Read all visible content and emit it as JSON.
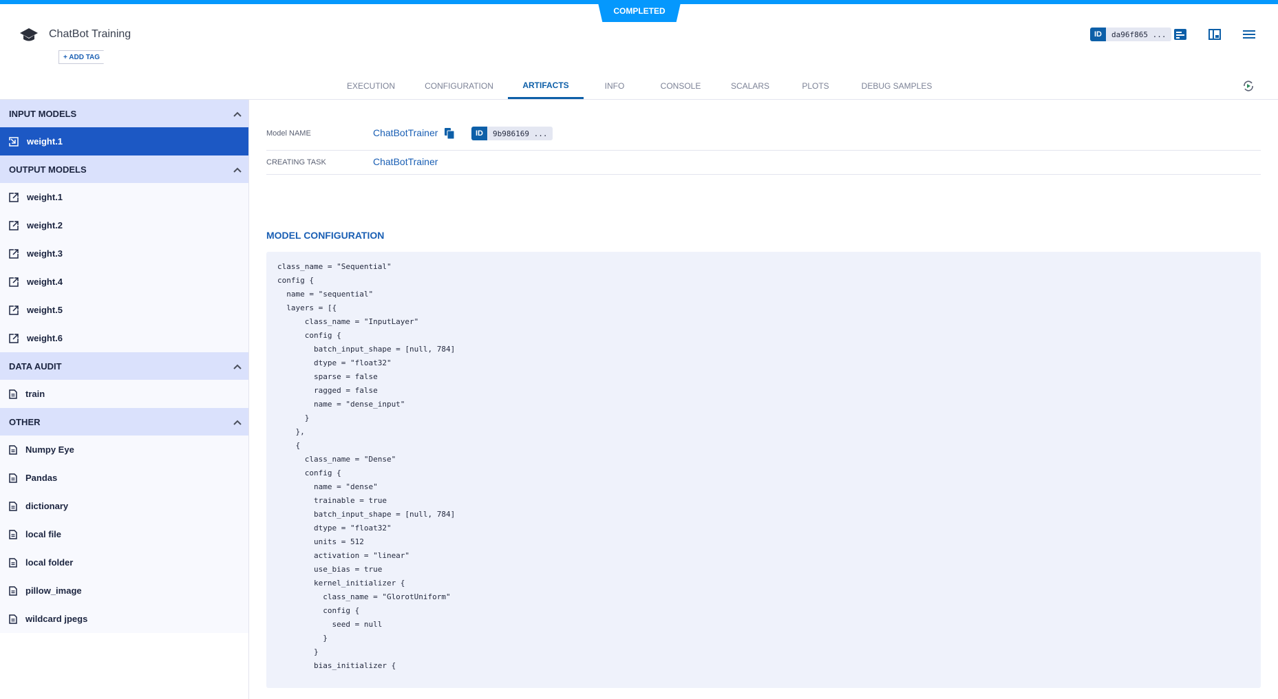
{
  "header": {
    "status": "COMPLETED",
    "title": "ChatBot Training",
    "add_tag_label": "+ ADD TAG",
    "id_tag": "ID",
    "task_id": "da96f865 ...",
    "icons": [
      "graduation-cap-icon",
      "info-panel-icon",
      "layout-icon",
      "menu-icon",
      "refresh-icon"
    ],
    "accent": "#0598fd"
  },
  "tabs": [
    {
      "label": "EXECUTION"
    },
    {
      "label": "CONFIGURATION"
    },
    {
      "label": "ARTIFACTS",
      "active": true
    },
    {
      "label": "INFO"
    },
    {
      "label": "CONSOLE"
    },
    {
      "label": "SCALARS"
    },
    {
      "label": "PLOTS"
    },
    {
      "label": "DEBUG SAMPLES"
    }
  ],
  "sidebar": {
    "sections": [
      {
        "title": "INPUT MODELS",
        "icon": "input-model-icon",
        "items": [
          {
            "label": "weight.1",
            "selected": true
          }
        ]
      },
      {
        "title": "OUTPUT MODELS",
        "icon": "external-link-icon",
        "items": [
          {
            "label": "weight.1"
          },
          {
            "label": "weight.2"
          },
          {
            "label": "weight.3"
          },
          {
            "label": "weight.4"
          },
          {
            "label": "weight.5"
          },
          {
            "label": "weight.6"
          }
        ]
      },
      {
        "title": "DATA AUDIT",
        "icon": "document-icon",
        "items": [
          {
            "label": "train"
          }
        ]
      },
      {
        "title": "OTHER",
        "icon": "document-icon",
        "items": [
          {
            "label": "Numpy Eye"
          },
          {
            "label": "Pandas"
          },
          {
            "label": "dictionary"
          },
          {
            "label": "local file"
          },
          {
            "label": "local folder"
          },
          {
            "label": "pillow_image"
          },
          {
            "label": "wildcard jpegs"
          }
        ]
      }
    ]
  },
  "main": {
    "model_name_label": "Model NAME",
    "model_name": "ChatBotTrainer",
    "model_id_tag": "ID",
    "model_id": "9b986169 ...",
    "creating_task_label": "CREATING TASK",
    "creating_task": "ChatBotTrainer",
    "model_config_title": "MODEL CONFIGURATION",
    "code": [
      "class_name = \"Sequential\"",
      "config {",
      "  name = \"sequential\"",
      "  layers = [{",
      "      class_name = \"InputLayer\"",
      "      config {",
      "        batch_input_shape = [null, 784]",
      "        dtype = \"float32\"",
      "        sparse = false",
      "        ragged = false",
      "        name = \"dense_input\"",
      "      }",
      "    },",
      "    {",
      "      class_name = \"Dense\"",
      "      config {",
      "        name = \"dense\"",
      "        trainable = true",
      "        batch_input_shape = [null, 784]",
      "        dtype = \"float32\"",
      "        units = 512",
      "        activation = \"linear\"",
      "        use_bias = true",
      "        kernel_initializer {",
      "          class_name = \"GlorotUniform\"",
      "          config {",
      "            seed = null",
      "          }",
      "        }",
      "        bias_initializer {"
    ]
  }
}
